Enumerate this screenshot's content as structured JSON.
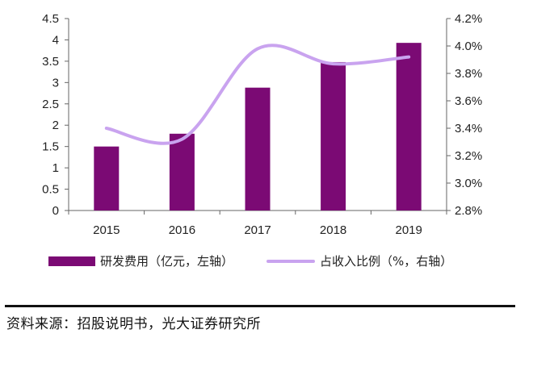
{
  "colors": {
    "bar": "#7b0a74",
    "line": "#c9a3ef",
    "axis": "#666666"
  },
  "chart_data": {
    "type": "bar",
    "categories": [
      "2015",
      "2016",
      "2017",
      "2018",
      "2019"
    ],
    "series": [
      {
        "name": "研发费用（亿元，左轴）",
        "type": "bar",
        "axis": "left",
        "values": [
          1.5,
          1.8,
          2.88,
          3.48,
          3.93
        ]
      },
      {
        "name": "占收入比例（%，右轴）",
        "type": "line",
        "axis": "right",
        "values": [
          3.4,
          3.32,
          3.98,
          3.87,
          3.92
        ]
      }
    ],
    "yleft": {
      "lim": [
        0,
        4.5
      ],
      "ticks": [
        "0",
        "0.5",
        "1",
        "1.5",
        "2",
        "2.5",
        "3",
        "3.5",
        "4",
        "4.5"
      ]
    },
    "yright": {
      "lim": [
        2.8,
        4.2
      ],
      "ticks": [
        "2.8%",
        "3.0%",
        "3.2%",
        "3.4%",
        "3.6%",
        "3.8%",
        "4.0%",
        "4.2%"
      ]
    },
    "legend_position": "bottom",
    "grid": false
  },
  "legend": {
    "bar_label": "研发费用（亿元，左轴）",
    "line_label": "占收入比例（%，右轴）"
  },
  "source": "资料来源：招股说明书，光大证券研究所"
}
